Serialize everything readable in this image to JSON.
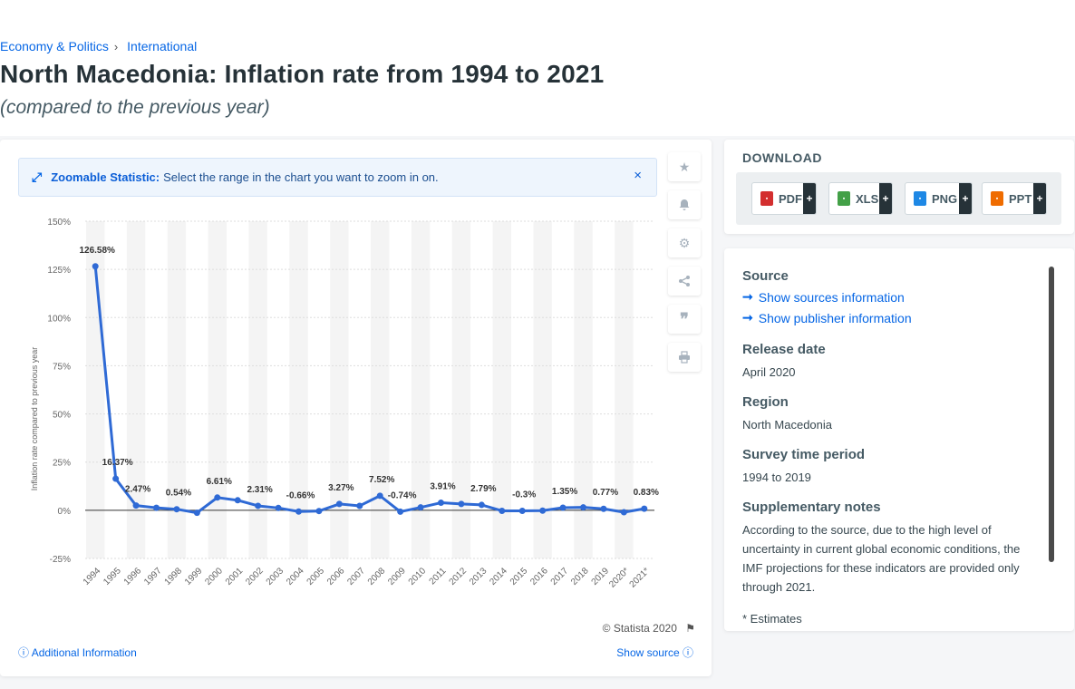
{
  "breadcrumb": {
    "item1": "Economy & Politics",
    "sep": "›",
    "item2": "International"
  },
  "header": {
    "title": "North Macedonia: Inflation rate from 1994 to 2021",
    "subtitle": "(compared to the previous year)"
  },
  "zoom": {
    "label": "Zoomable Statistic:",
    "text": "Select the range in the chart you want to zoom in on.",
    "close": "×"
  },
  "footer": {
    "credit": "© Statista 2020",
    "additional": "Additional Information",
    "source": "Show source"
  },
  "download": {
    "title": "DOWNLOAD",
    "buttons": [
      {
        "label": "PDF",
        "icon": "pdf-file-icon",
        "color": "#d32f2f"
      },
      {
        "label": "XLS",
        "icon": "xls-file-icon",
        "color": "#43a047"
      },
      {
        "label": "PNG",
        "icon": "png-file-icon",
        "color": "#1e88e5"
      },
      {
        "label": "PPT",
        "icon": "ppt-file-icon",
        "color": "#ef6c00"
      }
    ]
  },
  "info": {
    "source_h": "Source",
    "show_sources": "Show sources information",
    "show_publisher": "Show publisher information",
    "release_h": "Release date",
    "release_v": "April 2020",
    "region_h": "Region",
    "region_v": "North Macedonia",
    "survey_h": "Survey time period",
    "survey_v": "1994 to 2019",
    "notes_h": "Supplementary notes",
    "notes_v": "According to the source, due to the high level of uncertainty in current global economic conditions, the IMF projections for these indicators are provided only through 2021.",
    "estimates": "* Estimates"
  },
  "colors": {
    "line": "#2f6ad5",
    "accent": "#0666e5",
    "stripe": "#f4f4f4"
  },
  "chart_data": {
    "type": "line",
    "ylabel": "Inflation rate compared to previous year",
    "ylim": [
      -25,
      150
    ],
    "yticks": [
      "-25%",
      "0%",
      "25%",
      "50%",
      "75%",
      "100%",
      "125%",
      "150%"
    ],
    "x": [
      "1994",
      "1995",
      "1996",
      "1997",
      "1998",
      "1999",
      "2000",
      "2001",
      "2002",
      "2003",
      "2004",
      "2005",
      "2006",
      "2007",
      "2008",
      "2009",
      "2010",
      "2011",
      "2012",
      "2013",
      "2014",
      "2015",
      "2016",
      "2017",
      "2018",
      "2019",
      "2020*",
      "2021*"
    ],
    "series": [
      {
        "values": [
          126.58,
          16.37,
          2.47,
          1.3,
          0.54,
          -1.3,
          6.61,
          5.2,
          2.31,
          1.2,
          -0.66,
          -0.4,
          3.27,
          2.3,
          7.52,
          -0.74,
          1.5,
          3.91,
          3.3,
          2.79,
          -0.3,
          -0.3,
          -0.2,
          1.35,
          1.5,
          0.77,
          -1.0,
          0.83
        ]
      }
    ],
    "data_labels": [
      "126.58%",
      "16.37%",
      "2.47%",
      "",
      "0.54%",
      "",
      "6.61%",
      "",
      "2.31%",
      "",
      "-0.66%",
      "",
      "3.27%",
      "",
      "7.52%",
      "-0.74%",
      "",
      "3.91%",
      "",
      "2.79%",
      "",
      "-0.3%",
      "",
      "1.35%",
      "",
      "0.77%",
      "",
      "0.83%"
    ],
    "grid": true,
    "legend": "none"
  }
}
